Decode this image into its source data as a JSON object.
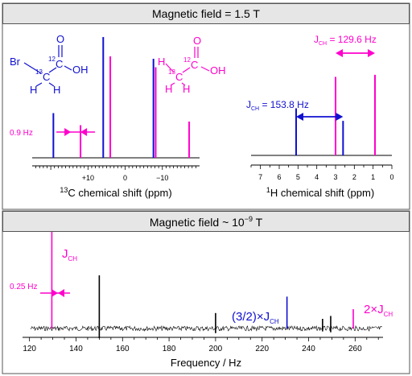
{
  "top_panel": {
    "title": "Magnetic field = 1.5 T"
  },
  "bottom_panel": {
    "title": "Magnetic field ~ 10",
    "title_exp": "−9",
    "title_unit": " T"
  },
  "colors": {
    "blue": "#1010d0",
    "magenta": "#ff00cc",
    "black": "#000000",
    "header_bg": "#e6e6e6",
    "frame": "#555555"
  },
  "molecules": {
    "blue": {
      "name": "bromoacetic acid",
      "atoms": {
        "br": "Br",
        "c13": "13",
        "c13_letter": "C",
        "c12": "12",
        "c12_letter": "C",
        "o": "O",
        "oh": "OH",
        "h1": "H",
        "h2": "H"
      }
    },
    "magenta": {
      "name": "acetic acid",
      "atoms": {
        "h1": "H",
        "h2": "H",
        "h3": "H",
        "c13": "13",
        "c13_letter": "C",
        "c12": "12",
        "c12_letter": "C",
        "o": "O",
        "oh": "OH"
      }
    }
  },
  "chart_data": [
    {
      "type": "line",
      "panel": "13C spectrum at 1.5 T",
      "xlabel": "chemical shift (ppm)",
      "xlabel_sup": "13",
      "xlabel_sym": "C",
      "xlim": [
        25,
        -20
      ],
      "x_reversed": true,
      "xticks": [
        10,
        0,
        -10
      ],
      "xtick_labels": [
        "+10",
        "0",
        "−10"
      ],
      "annotation": {
        "label": "0.9 Hz",
        "from_ppm": 14.6,
        "to_ppm": 12.0,
        "color": "#ff00cc"
      },
      "peaks": [
        {
          "ppm": 19.3,
          "height": 0.37,
          "series": "blue"
        },
        {
          "ppm": 12.0,
          "height": 0.27,
          "series": "magenta"
        },
        {
          "ppm": 5.9,
          "height": 1.0,
          "series": "blue"
        },
        {
          "ppm": 4.0,
          "height": 0.84,
          "series": "magenta"
        },
        {
          "ppm": -7.6,
          "height": 0.82,
          "series": "blue"
        },
        {
          "ppm": -8.2,
          "height": 0.75,
          "series": "magenta"
        },
        {
          "ppm": -17.2,
          "height": 0.3,
          "series": "magenta"
        }
      ]
    },
    {
      "type": "line",
      "panel": "1H spectrum at 1.5 T",
      "xlabel": "H chemical shift (ppm)",
      "xlabel_sup": "1",
      "xlim": [
        7.5,
        0
      ],
      "x_reversed": true,
      "xticks": [
        7,
        6,
        5,
        4,
        3,
        2,
        1,
        0
      ],
      "xtick_labels": [
        "7",
        "6",
        "5",
        "4",
        "3",
        "2",
        "1",
        "0"
      ],
      "annotations": [
        {
          "label": "J",
          "sub": "CH",
          "value": " = 129.6 Hz",
          "from_ppm": 3.0,
          "to_ppm": 0.9,
          "color": "#ff00cc"
        },
        {
          "label": "J",
          "sub": "CH",
          "value": " = 153.8 Hz",
          "from_ppm": 5.1,
          "to_ppm": 2.6,
          "color": "#1010d0"
        }
      ],
      "peaks": [
        {
          "ppm": 5.1,
          "height": 0.45,
          "series": "blue"
        },
        {
          "ppm": 3.0,
          "height": 0.75,
          "series": "magenta"
        },
        {
          "ppm": 2.6,
          "height": 0.33,
          "series": "blue"
        },
        {
          "ppm": 0.9,
          "height": 0.77,
          "series": "magenta"
        }
      ]
    },
    {
      "type": "line",
      "panel": "ZULF spectrum",
      "xlabel": "Frequency / Hz",
      "xlim": [
        117,
        272
      ],
      "xticks": [
        120,
        140,
        160,
        180,
        200,
        220,
        240,
        260
      ],
      "xtick_labels": [
        "120",
        "140",
        "160",
        "180",
        "200",
        "220",
        "240",
        "260"
      ],
      "annotations": [
        {
          "label": "J",
          "sub": "CH",
          "prefix": "",
          "color": "#ff00cc"
        },
        {
          "label": "J",
          "sub": "CH",
          "prefix": "(3/2)×",
          "color": "#1010d0"
        },
        {
          "label": "J",
          "sub": "CH",
          "prefix": "2×",
          "color": "#ff00cc"
        },
        {
          "label": "0.25 Hz",
          "color": "#ff00cc"
        }
      ],
      "peaks": [
        {
          "hz": 129.6,
          "height": 1.0,
          "series": "magenta"
        },
        {
          "hz": 150.0,
          "height": 0.55,
          "series": "black",
          "bipolar": true
        },
        {
          "hz": 200.0,
          "height": 0.16,
          "series": "black",
          "bipolar": true
        },
        {
          "hz": 230.7,
          "height": 0.33,
          "series": "blue"
        },
        {
          "hz": 246.0,
          "height": 0.1,
          "series": "black",
          "bipolar": true
        },
        {
          "hz": 249.5,
          "height": 0.13,
          "series": "black",
          "bipolar": true
        },
        {
          "hz": 259.2,
          "height": 0.2,
          "series": "magenta"
        }
      ]
    }
  ]
}
